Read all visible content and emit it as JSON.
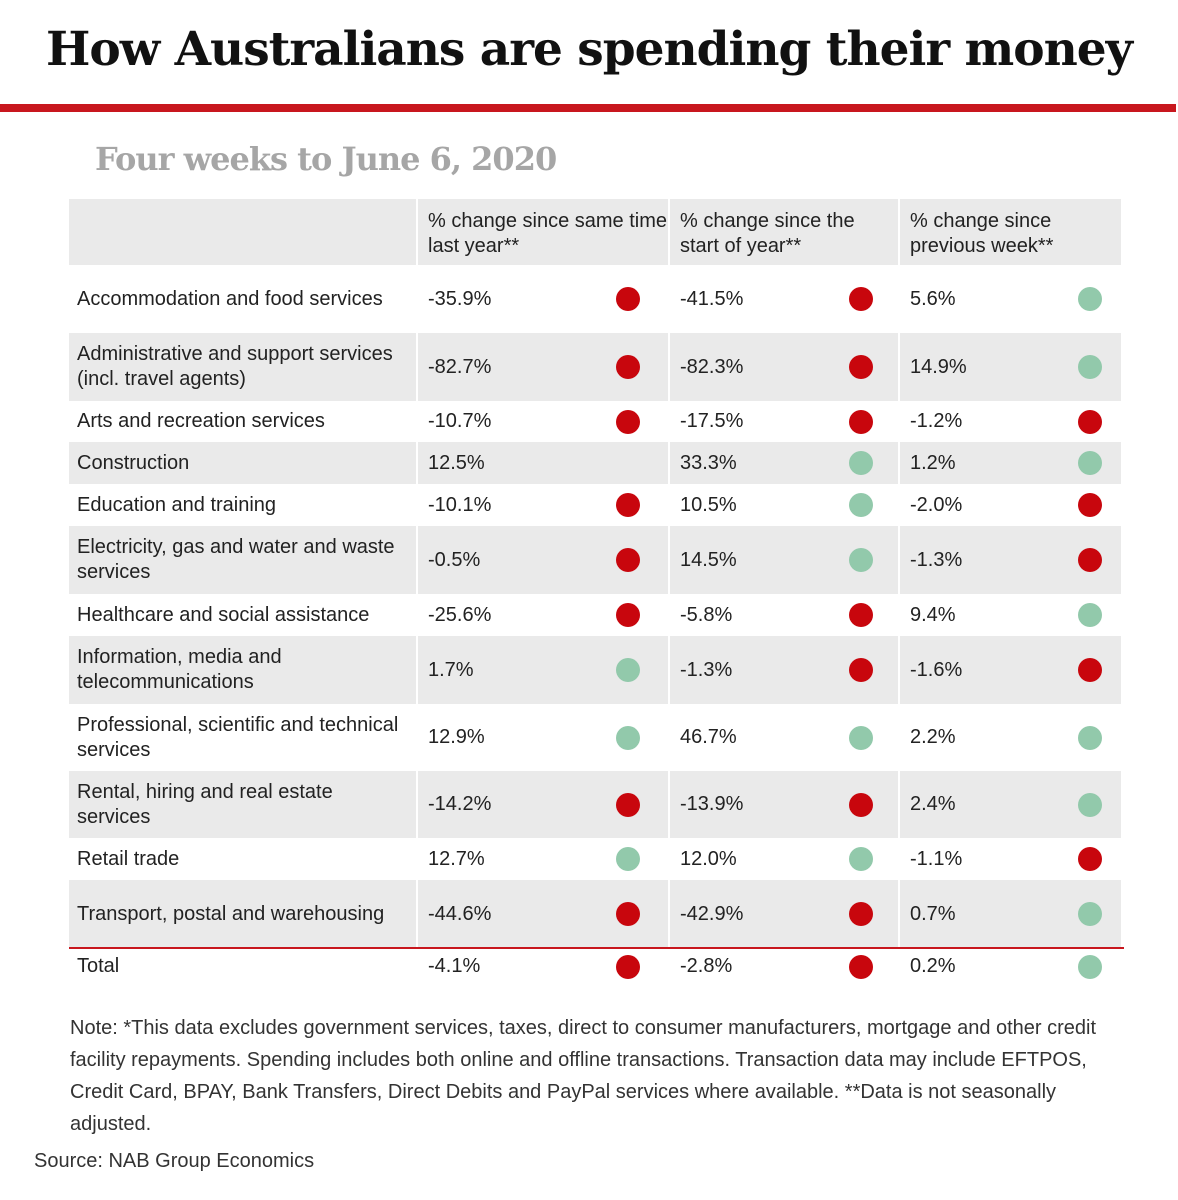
{
  "header": {
    "title": "How Australians are spending their money",
    "subtitle": "Four weeks to June 6, 2020"
  },
  "colors": {
    "negative": "#c8060d",
    "positive": "#92c9ab",
    "accent": "#c8171e"
  },
  "chart_data": {
    "type": "table",
    "columns": [
      "",
      "% change since same time last year**",
      "% change since the start of year**",
      "% change since previous week**"
    ],
    "rows": [
      {
        "category": "Accommodation and food services",
        "values": [
          "-35.9%",
          "-41.5%",
          "5.6%"
        ],
        "status": [
          "negative",
          "negative",
          "positive"
        ]
      },
      {
        "category": "Administrative and support services (incl. travel agents)",
        "values": [
          "-82.7%",
          "-82.3%",
          "14.9%"
        ],
        "status": [
          "negative",
          "negative",
          "positive"
        ]
      },
      {
        "category": "Arts and recreation services",
        "values": [
          "-10.7%",
          "-17.5%",
          "-1.2%"
        ],
        "status": [
          "negative",
          "negative",
          "negative"
        ]
      },
      {
        "category": "Construction",
        "values": [
          "12.5%",
          "33.3%",
          "1.2%"
        ],
        "status": [
          "none",
          "positive",
          "positive"
        ]
      },
      {
        "category": "Education and training",
        "values": [
          "-10.1%",
          "10.5%",
          "-2.0%"
        ],
        "status": [
          "negative",
          "positive",
          "negative"
        ]
      },
      {
        "category": "Electricity, gas and water and waste services",
        "values": [
          "-0.5%",
          "14.5%",
          "-1.3%"
        ],
        "status": [
          "negative",
          "positive",
          "negative"
        ]
      },
      {
        "category": "Healthcare and social assistance",
        "values": [
          "-25.6%",
          "-5.8%",
          "9.4%"
        ],
        "status": [
          "negative",
          "negative",
          "positive"
        ]
      },
      {
        "category": "Information, media and telecommunications",
        "values": [
          "1.7%",
          "-1.3%",
          "-1.6%"
        ],
        "status": [
          "positive",
          "negative",
          "negative"
        ]
      },
      {
        "category": "Professional, scientific and technical services",
        "values": [
          "12.9%",
          "46.7%",
          "2.2%"
        ],
        "status": [
          "positive",
          "positive",
          "positive"
        ]
      },
      {
        "category": "Rental, hiring and real estate services",
        "values": [
          "-14.2%",
          "-13.9%",
          "2.4%"
        ],
        "status": [
          "negative",
          "negative",
          "positive"
        ]
      },
      {
        "category": "Retail trade",
        "values": [
          "12.7%",
          "12.0%",
          "-1.1%"
        ],
        "status": [
          "positive",
          "positive",
          "negative"
        ]
      },
      {
        "category": "Transport, postal and warehousing",
        "values": [
          "-44.6%",
          "-42.9%",
          "0.7%"
        ],
        "status": [
          "negative",
          "negative",
          "positive"
        ]
      },
      {
        "category": "Total",
        "values": [
          "-4.1%",
          "-2.8%",
          "0.2%"
        ],
        "status": [
          "negative",
          "negative",
          "positive"
        ]
      }
    ]
  },
  "footer": {
    "note": "Note: *This data excludes government services, taxes, direct to consumer manufacturers, mortgage and other credit facility repayments. Spending includes both online and offline transactions. Transaction data may include EFTPOS, Credit Card, BPAY, Bank Transfers, Direct Debits and PayPal services where available. **Data is not seasonally adjusted.",
    "source": "Source: NAB Group Economics"
  }
}
